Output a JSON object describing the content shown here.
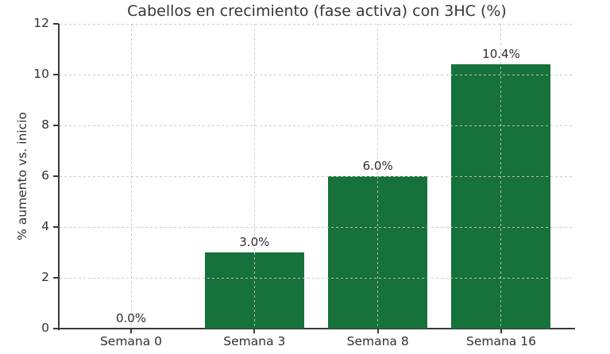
{
  "chart_data": {
    "type": "bar",
    "title": "Cabellos en crecimiento (fase activa) con 3HC (%)",
    "categories": [
      "Semana 0",
      "Semana 3",
      "Semana 8",
      "Semana 16"
    ],
    "values": [
      0.0,
      3.0,
      6.0,
      10.4
    ],
    "bar_labels": [
      "0.0%",
      "3.0%",
      "6.0%",
      "10.4%"
    ],
    "xlabel": "",
    "ylabel": "% aumento vs. inicio",
    "ylim": [
      0,
      12
    ],
    "yticks": [
      0,
      2,
      4,
      6,
      8,
      10,
      12
    ],
    "grid": true,
    "grid_style": "dashed",
    "legend": null,
    "colors": {
      "bar": "#16713b",
      "axis": "#3a3a3a",
      "text": "#303030",
      "grid": "#c6c6c6",
      "background": "#ffffff"
    }
  }
}
